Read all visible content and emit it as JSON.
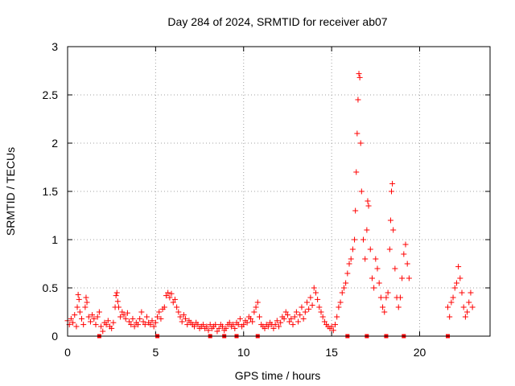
{
  "chart_data": {
    "type": "scatter",
    "title": "Day 284 of 2024, SRMTID for receiver ab07",
    "xlabel": "GPS time / hours",
    "ylabel": "SRMTID / TECUs",
    "xlim": [
      0,
      24
    ],
    "ylim": [
      0,
      3
    ],
    "xticks": [
      "0",
      "5",
      "10",
      "15",
      "20"
    ],
    "yticks": [
      "0",
      "0.5",
      "1",
      "1.5",
      "2",
      "2.5",
      "3"
    ],
    "grid": true,
    "marker": "+",
    "color": "#ff0000",
    "series": [
      {
        "name": "SRMTID",
        "points": [
          [
            0.0,
            0.16
          ],
          [
            0.1,
            0.12
          ],
          [
            0.2,
            0.18
          ],
          [
            0.3,
            0.14
          ],
          [
            0.4,
            0.22
          ],
          [
            0.5,
            0.1
          ],
          [
            0.55,
            0.3
          ],
          [
            0.6,
            0.43
          ],
          [
            0.65,
            0.38
          ],
          [
            0.7,
            0.25
          ],
          [
            0.8,
            0.18
          ],
          [
            0.9,
            0.12
          ],
          [
            1.0,
            0.3
          ],
          [
            1.05,
            0.4
          ],
          [
            1.1,
            0.35
          ],
          [
            1.2,
            0.2
          ],
          [
            1.3,
            0.15
          ],
          [
            1.4,
            0.22
          ],
          [
            1.5,
            0.18
          ],
          [
            1.6,
            0.12
          ],
          [
            1.7,
            0.2
          ],
          [
            1.8,
            0.25
          ],
          [
            1.9,
            0.1
          ],
          [
            2.0,
            0.05
          ],
          [
            2.1,
            0.14
          ],
          [
            2.2,
            0.12
          ],
          [
            2.3,
            0.16
          ],
          [
            2.4,
            0.1
          ],
          [
            2.5,
            0.08
          ],
          [
            2.6,
            0.14
          ],
          [
            2.7,
            0.3
          ],
          [
            2.75,
            0.42
          ],
          [
            2.8,
            0.45
          ],
          [
            2.85,
            0.36
          ],
          [
            2.9,
            0.3
          ],
          [
            3.0,
            0.2
          ],
          [
            3.1,
            0.25
          ],
          [
            3.2,
            0.22
          ],
          [
            3.3,
            0.18
          ],
          [
            3.4,
            0.24
          ],
          [
            3.5,
            0.15
          ],
          [
            3.6,
            0.12
          ],
          [
            3.7,
            0.18
          ],
          [
            3.8,
            0.1
          ],
          [
            3.9,
            0.14
          ],
          [
            4.0,
            0.12
          ],
          [
            4.1,
            0.18
          ],
          [
            4.2,
            0.25
          ],
          [
            4.3,
            0.15
          ],
          [
            4.4,
            0.12
          ],
          [
            4.5,
            0.2
          ],
          [
            4.6,
            0.14
          ],
          [
            4.7,
            0.12
          ],
          [
            4.8,
            0.16
          ],
          [
            4.9,
            0.1
          ],
          [
            5.0,
            0.14
          ],
          [
            5.1,
            0.2
          ],
          [
            5.2,
            0.25
          ],
          [
            5.3,
            0.18
          ],
          [
            5.4,
            0.28
          ],
          [
            5.5,
            0.3
          ],
          [
            5.6,
            0.42
          ],
          [
            5.7,
            0.45
          ],
          [
            5.8,
            0.4
          ],
          [
            5.9,
            0.44
          ],
          [
            6.0,
            0.35
          ],
          [
            6.1,
            0.38
          ],
          [
            6.2,
            0.3
          ],
          [
            6.3,
            0.25
          ],
          [
            6.4,
            0.2
          ],
          [
            6.5,
            0.15
          ],
          [
            6.6,
            0.22
          ],
          [
            6.7,
            0.18
          ],
          [
            6.8,
            0.12
          ],
          [
            6.9,
            0.16
          ],
          [
            7.0,
            0.14
          ],
          [
            7.1,
            0.12
          ],
          [
            7.2,
            0.1
          ],
          [
            7.3,
            0.14
          ],
          [
            7.4,
            0.12
          ],
          [
            7.5,
            0.08
          ],
          [
            7.6,
            0.1
          ],
          [
            7.7,
            0.12
          ],
          [
            7.8,
            0.08
          ],
          [
            7.9,
            0.1
          ],
          [
            8.0,
            0.06
          ],
          [
            8.1,
            0.12
          ],
          [
            8.2,
            0.08
          ],
          [
            8.3,
            0.1
          ],
          [
            8.4,
            0.12
          ],
          [
            8.5,
            0.05
          ],
          [
            8.6,
            0.08
          ],
          [
            8.7,
            0.12
          ],
          [
            8.8,
            0.1
          ],
          [
            8.9,
            0.06
          ],
          [
            9.0,
            0.08
          ],
          [
            9.1,
            0.12
          ],
          [
            9.2,
            0.14
          ],
          [
            9.3,
            0.1
          ],
          [
            9.4,
            0.12
          ],
          [
            9.5,
            0.08
          ],
          [
            9.6,
            0.14
          ],
          [
            9.7,
            0.12
          ],
          [
            9.8,
            0.18
          ],
          [
            9.9,
            0.1
          ],
          [
            10.0,
            0.12
          ],
          [
            10.1,
            0.16
          ],
          [
            10.2,
            0.14
          ],
          [
            10.3,
            0.2
          ],
          [
            10.4,
            0.18
          ],
          [
            10.5,
            0.15
          ],
          [
            10.6,
            0.25
          ],
          [
            10.7,
            0.3
          ],
          [
            10.8,
            0.35
          ],
          [
            10.9,
            0.2
          ],
          [
            11.0,
            0.12
          ],
          [
            11.1,
            0.1
          ],
          [
            11.2,
            0.08
          ],
          [
            11.3,
            0.12
          ],
          [
            11.4,
            0.1
          ],
          [
            11.5,
            0.14
          ],
          [
            11.6,
            0.12
          ],
          [
            11.7,
            0.08
          ],
          [
            11.8,
            0.12
          ],
          [
            11.9,
            0.16
          ],
          [
            12.0,
            0.1
          ],
          [
            12.1,
            0.14
          ],
          [
            12.2,
            0.2
          ],
          [
            12.3,
            0.18
          ],
          [
            12.4,
            0.25
          ],
          [
            12.5,
            0.22
          ],
          [
            12.6,
            0.15
          ],
          [
            12.7,
            0.18
          ],
          [
            12.8,
            0.12
          ],
          [
            12.9,
            0.2
          ],
          [
            13.0,
            0.25
          ],
          [
            13.1,
            0.15
          ],
          [
            13.2,
            0.22
          ],
          [
            13.3,
            0.3
          ],
          [
            13.4,
            0.18
          ],
          [
            13.5,
            0.25
          ],
          [
            13.6,
            0.35
          ],
          [
            13.7,
            0.28
          ],
          [
            13.8,
            0.4
          ],
          [
            13.9,
            0.32
          ],
          [
            14.0,
            0.5
          ],
          [
            14.1,
            0.45
          ],
          [
            14.2,
            0.38
          ],
          [
            14.3,
            0.3
          ],
          [
            14.4,
            0.25
          ],
          [
            14.5,
            0.2
          ],
          [
            14.6,
            0.15
          ],
          [
            14.7,
            0.12
          ],
          [
            14.8,
            0.1
          ],
          [
            14.9,
            0.08
          ],
          [
            15.0,
            0.1
          ],
          [
            15.1,
            0.06
          ],
          [
            15.2,
            0.12
          ],
          [
            15.3,
            0.2
          ],
          [
            15.4,
            0.3
          ],
          [
            15.5,
            0.35
          ],
          [
            15.6,
            0.45
          ],
          [
            15.7,
            0.5
          ],
          [
            15.8,
            0.55
          ],
          [
            15.9,
            0.65
          ],
          [
            16.0,
            0.75
          ],
          [
            16.1,
            0.8
          ],
          [
            16.2,
            0.9
          ],
          [
            16.3,
            1.0
          ],
          [
            16.35,
            1.3
          ],
          [
            16.4,
            1.7
          ],
          [
            16.45,
            2.1
          ],
          [
            16.5,
            2.45
          ],
          [
            16.55,
            2.72
          ],
          [
            16.6,
            2.68
          ],
          [
            16.65,
            2.0
          ],
          [
            16.7,
            1.5
          ],
          [
            16.8,
            1.0
          ],
          [
            16.9,
            0.8
          ],
          [
            17.0,
            1.1
          ],
          [
            17.05,
            1.4
          ],
          [
            17.1,
            1.35
          ],
          [
            17.2,
            0.9
          ],
          [
            17.3,
            0.6
          ],
          [
            17.4,
            0.5
          ],
          [
            17.5,
            0.8
          ],
          [
            17.6,
            0.7
          ],
          [
            17.7,
            0.55
          ],
          [
            17.8,
            0.4
          ],
          [
            17.9,
            0.3
          ],
          [
            18.0,
            0.25
          ],
          [
            18.1,
            0.4
          ],
          [
            18.2,
            0.45
          ],
          [
            18.3,
            0.9
          ],
          [
            18.35,
            1.2
          ],
          [
            18.4,
            1.5
          ],
          [
            18.45,
            1.58
          ],
          [
            18.5,
            1.1
          ],
          [
            18.6,
            0.7
          ],
          [
            18.7,
            0.4
          ],
          [
            18.8,
            0.3
          ],
          [
            18.9,
            0.4
          ],
          [
            19.0,
            0.6
          ],
          [
            19.1,
            0.85
          ],
          [
            19.2,
            0.95
          ],
          [
            19.3,
            0.75
          ],
          [
            19.4,
            0.6
          ],
          [
            21.6,
            0.3
          ],
          [
            21.7,
            0.2
          ],
          [
            21.8,
            0.35
          ],
          [
            21.9,
            0.4
          ],
          [
            22.0,
            0.5
          ],
          [
            22.1,
            0.55
          ],
          [
            22.2,
            0.72
          ],
          [
            22.3,
            0.6
          ],
          [
            22.4,
            0.45
          ],
          [
            22.5,
            0.3
          ],
          [
            22.6,
            0.2
          ],
          [
            22.7,
            0.25
          ],
          [
            22.8,
            0.35
          ],
          [
            22.9,
            0.45
          ],
          [
            23.0,
            0.3
          ]
        ]
      }
    ],
    "zero_markers_x": [
      1.8,
      5.1,
      8.1,
      8.9,
      9.6,
      10.8,
      15.9,
      17.0,
      18.1,
      19.1,
      21.6
    ]
  }
}
